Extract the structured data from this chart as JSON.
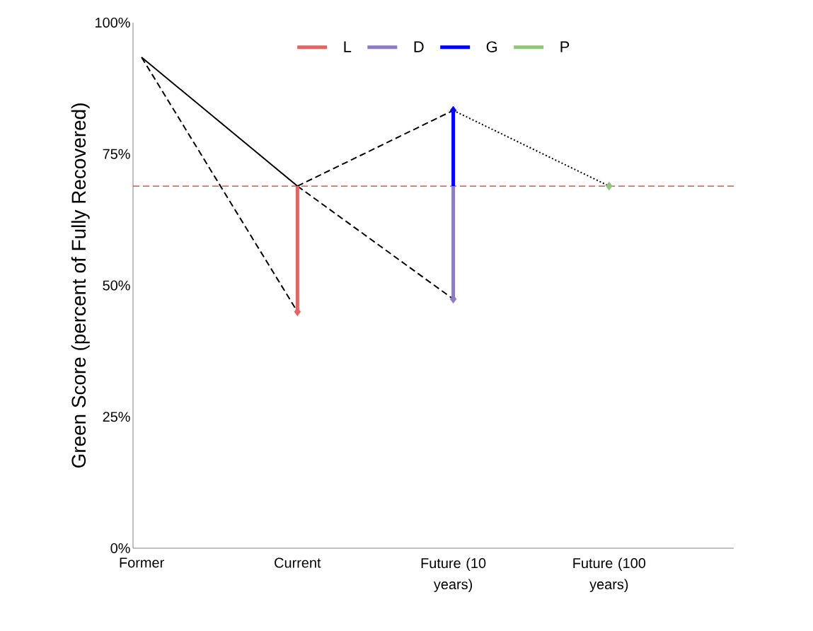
{
  "chart_data": {
    "type": "line",
    "ylabel": "Green Score (percent of Fully Recovered)",
    "categories": [
      "Former",
      "Current",
      "Future (10 years)",
      "Future (100 years)"
    ],
    "ylim": [
      0,
      100
    ],
    "yticks": [
      {
        "value": 0,
        "label": "0%"
      },
      {
        "value": 25,
        "label": "25%"
      },
      {
        "value": 50,
        "label": "50%"
      },
      {
        "value": 75,
        "label": "75%"
      },
      {
        "value": 100,
        "label": "100%"
      }
    ],
    "grid": false,
    "legend": "top",
    "series": [
      {
        "color": "#000000",
        "values": [
          93.4,
          68.9,
          null,
          null
        ],
        "line_style": "solid",
        "marker": "none"
      },
      {
        "color": "#000000",
        "values": [
          93.4,
          45,
          null,
          null
        ],
        "line_style": "dashed",
        "marker": "none"
      },
      {
        "color": "#000000",
        "values": [
          null,
          68.9,
          83.3,
          null
        ],
        "line_style": "dashed",
        "marker": "none"
      },
      {
        "color": "#000000",
        "values": [
          null,
          68.9,
          47.4,
          null
        ],
        "line_style": "dashed",
        "marker": "none"
      },
      {
        "color": "#000000",
        "values": [
          null,
          null,
          83.3,
          68.9
        ],
        "line_style": "dotted",
        "marker": "none"
      },
      {
        "name": "L",
        "type": "scatter",
        "color": "#e06666",
        "values": [
          null,
          45,
          null,
          null
        ],
        "errors": [
          null,
          [
            45,
            68.9
          ],
          null,
          null
        ],
        "marker": "diamond"
      },
      {
        "name": "D",
        "type": "scatter",
        "color": "#8e7cc3",
        "values": [
          null,
          null,
          47.4,
          null
        ],
        "errors": [
          null,
          null,
          [
            47.4,
            68.9
          ],
          null
        ],
        "marker": "diamond"
      },
      {
        "name": "G",
        "type": "scatter",
        "color": "#0000ff",
        "values": [
          null,
          null,
          83.3,
          null
        ],
        "errors": [
          null,
          null,
          [
            68.9,
            83.3
          ],
          null
        ],
        "marker": "diamond"
      },
      {
        "name": "P",
        "type": "scatter",
        "color": "#93c47d",
        "values": [
          null,
          null,
          null,
          68.9
        ],
        "marker": "diamond"
      }
    ],
    "ref_lines": [
      {
        "axis": "y",
        "value": 68.9,
        "color": "#e03030",
        "line_style": "dashed"
      }
    ]
  }
}
